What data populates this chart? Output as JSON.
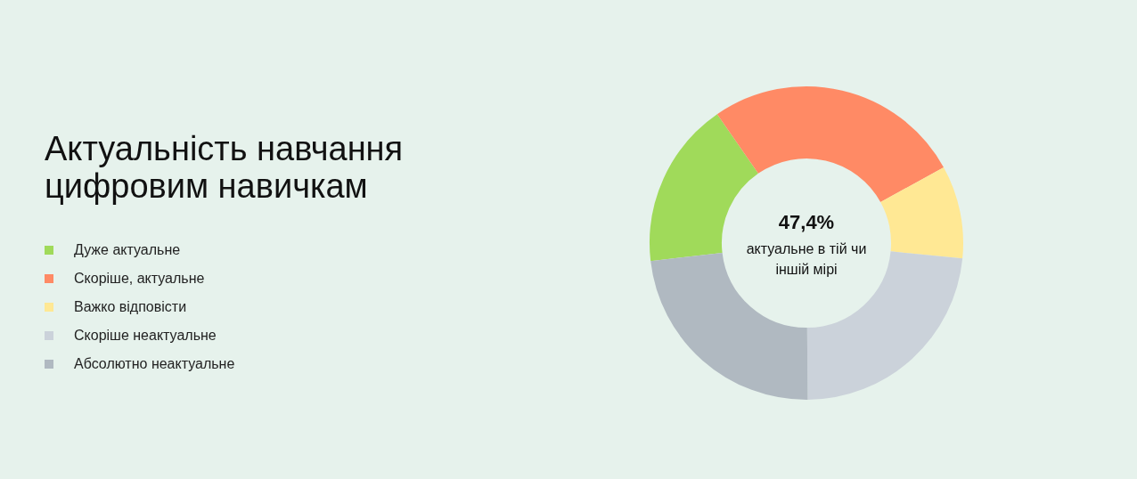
{
  "chart_data": {
    "type": "donut",
    "title": "Актуальність навчання цифровим навичкам",
    "categories": [
      "Дуже актуальне",
      "Скоріше, актуальне",
      "Важко відповісти",
      "Скоріше неактуальне",
      "Абсолютно неактуальне"
    ],
    "values": [
      17.2,
      26.6,
      9.6,
      23.3,
      23.3
    ],
    "colors": [
      "#a0da5a",
      "#ff8a65",
      "#ffe894",
      "#cbd2da",
      "#b0b9c1"
    ],
    "annotations": [
      "47,4%",
      "актуальне в тій чи іншій мірі"
    ],
    "legend": "left"
  }
}
